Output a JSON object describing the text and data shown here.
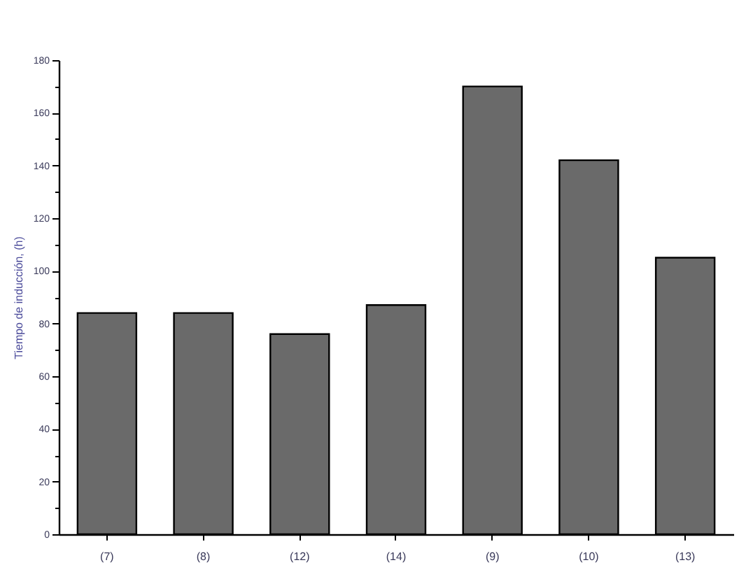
{
  "chart_data": {
    "type": "bar",
    "ylabel": "Tiempo de inducción, (h)",
    "categories": [
      "(7)",
      "(8)",
      "(12)",
      "(14)",
      "(9)",
      "(10)",
      "(13)"
    ],
    "values": [
      84,
      84,
      76,
      87,
      170,
      142,
      105
    ],
    "color": "#6a6a6a",
    "ylim": [
      0,
      180
    ],
    "yticks": [
      0,
      {
        "value": 10,
        "label": null
      },
      20,
      {
        "value": 30,
        "label": null
      },
      40,
      {
        "value": 50,
        "label": null
      },
      60,
      {
        "value": 70,
        "label": null
      },
      80,
      {
        "value": 90,
        "label": null
      },
      100,
      {
        "value": 110,
        "label": null
      },
      120,
      {
        "value": 130,
        "label": null
      },
      140,
      {
        "value": 150,
        "label": null
      },
      160,
      {
        "value": 170,
        "label": null
      },
      180
    ],
    "grid": false
  }
}
